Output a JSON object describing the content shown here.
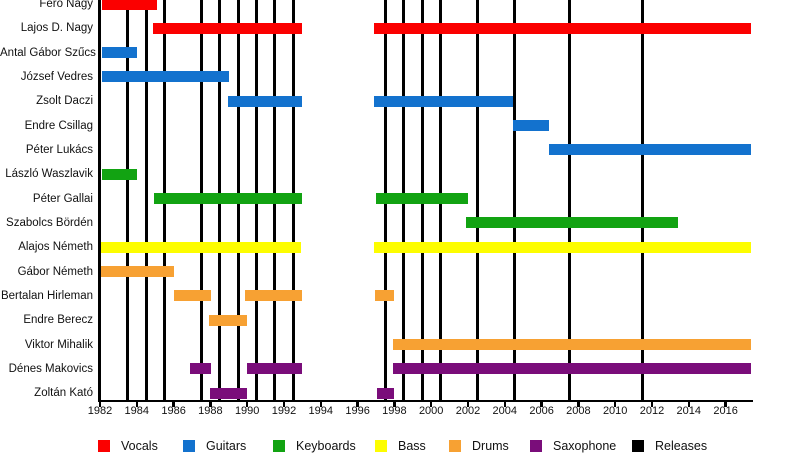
{
  "chart_data": {
    "type": "gantt-timeline",
    "title": "",
    "xlabel": "",
    "ylabel": "",
    "x_axis": {
      "min": 1982,
      "max": 2017.4,
      "tick_years": [
        1982,
        1984,
        1986,
        1988,
        1990,
        1992,
        1994,
        1996,
        1998,
        2000,
        2002,
        2004,
        2006,
        2008,
        2010,
        2012,
        2014,
        2016
      ]
    },
    "grid": false,
    "legend_position": "bottom",
    "colors": {
      "Vocals": "#fb0000",
      "Guitars": "#1372ce",
      "Keyboards": "#12a312",
      "Bass": "#fdfd00",
      "Drums": "#f7a133",
      "Saxophone": "#7a0d7a",
      "Releases": "#000000"
    },
    "legend": [
      "Vocals",
      "Guitars",
      "Keyboards",
      "Bass",
      "Drums",
      "Saxophone",
      "Releases"
    ],
    "release_lines": [
      1983.5,
      1984.5,
      1985.5,
      1987.5,
      1988.5,
      1989.5,
      1990.5,
      1991.5,
      1992.5,
      1997.5,
      1998.5,
      1999.5,
      2000.5,
      2002.5,
      2004.5,
      2007.5,
      2011.5
    ],
    "members": [
      {
        "name": "Feró Nagy",
        "role": "Vocals",
        "intervals": [
          [
            1982.1,
            1985.1
          ]
        ]
      },
      {
        "name": "Lajos D. Nagy",
        "role": "Vocals",
        "intervals": [
          [
            1984.9,
            1993.0
          ],
          [
            1996.9,
            2017.4
          ]
        ]
      },
      {
        "name": "Antal Gábor Szűcs",
        "role": "Guitars",
        "intervals": [
          [
            1982.1,
            1984.0
          ]
        ]
      },
      {
        "name": "József Vedres",
        "role": "Guitars",
        "intervals": [
          [
            1982.1,
            1989.0
          ]
        ]
      },
      {
        "name": "Zsolt Daczi",
        "role": "Guitars",
        "intervals": [
          [
            1988.95,
            1993.0
          ],
          [
            1996.9,
            2004.45
          ]
        ]
      },
      {
        "name": "Endre Csillag",
        "role": "Guitars",
        "intervals": [
          [
            2004.45,
            2006.4
          ]
        ]
      },
      {
        "name": "Péter Lukács",
        "role": "Guitars",
        "intervals": [
          [
            2006.4,
            2017.4
          ]
        ]
      },
      {
        "name": "László Waszlavik",
        "role": "Keyboards",
        "intervals": [
          [
            1982.1,
            1984.0
          ]
        ]
      },
      {
        "name": "Péter Gallai",
        "role": "Keyboards",
        "intervals": [
          [
            1984.95,
            1993.0
          ],
          [
            1997.0,
            2002.0
          ]
        ]
      },
      {
        "name": "Szabolcs Bördén",
        "role": "Keyboards",
        "intervals": [
          [
            2001.9,
            2013.4
          ]
        ]
      },
      {
        "name": "Alajos Németh",
        "role": "Bass",
        "intervals": [
          [
            1982.05,
            1992.95
          ],
          [
            1996.9,
            2017.4
          ]
        ]
      },
      {
        "name": "Gábor Németh",
        "role": "Drums",
        "intervals": [
          [
            1982.05,
            1986.0
          ]
        ]
      },
      {
        "name": "Bertalan Hirleman",
        "role": "Drums",
        "intervals": [
          [
            1986.0,
            1988.05
          ],
          [
            1989.9,
            1993.0
          ],
          [
            1996.95,
            1998.0
          ]
        ]
      },
      {
        "name": "Endre Berecz",
        "role": "Drums",
        "intervals": [
          [
            1987.95,
            1990.0
          ]
        ]
      },
      {
        "name": "Viktor Mihalik",
        "role": "Drums",
        "intervals": [
          [
            1997.9,
            2017.4
          ]
        ]
      },
      {
        "name": "Dénes Makovics",
        "role": "Saxophone",
        "intervals": [
          [
            1986.9,
            1988.05
          ],
          [
            1990.0,
            1993.0
          ],
          [
            1997.9,
            2017.4
          ]
        ]
      },
      {
        "name": "Zoltán Kató",
        "role": "Saxophone",
        "intervals": [
          [
            1988.0,
            1990.0
          ],
          [
            1997.05,
            1998.0
          ]
        ]
      }
    ]
  }
}
